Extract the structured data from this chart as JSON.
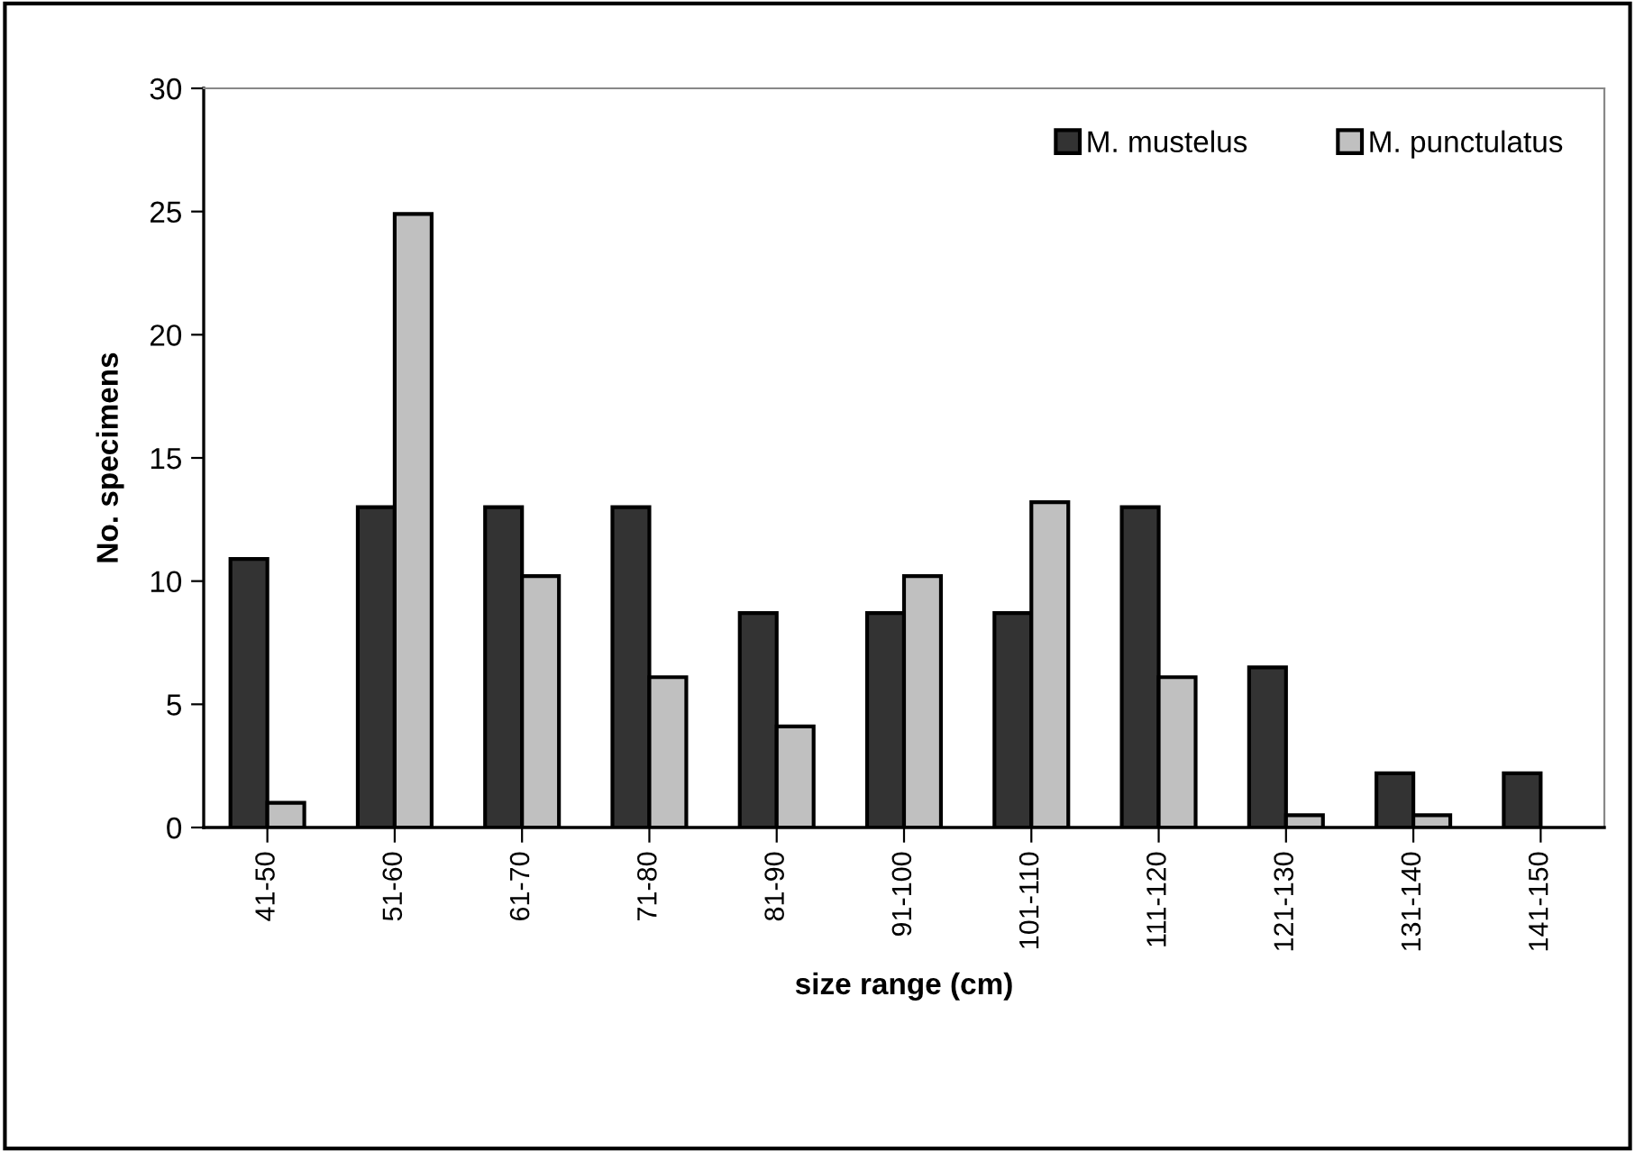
{
  "chart_data": {
    "type": "bar",
    "xlabel": "size range (cm)",
    "ylabel": "No. specimens",
    "categories": [
      "41-50",
      "51-60",
      "61-70",
      "71-80",
      "81-90",
      "91-100",
      "101-110",
      "111-120",
      "121-130",
      "131-140",
      "141-150"
    ],
    "series": [
      {
        "name": "M. mustelus",
        "color": "#333333",
        "values": [
          10.9,
          13,
          13,
          13,
          8.7,
          8.7,
          8.7,
          13,
          6.5,
          2.2,
          2.2
        ]
      },
      {
        "name": "M. punctulatus",
        "color": "#c0c0c0",
        "values": [
          1,
          24.9,
          10.2,
          6.1,
          4.1,
          10.2,
          13.2,
          6.1,
          0.5,
          0.5,
          null
        ]
      }
    ],
    "ylim": [
      0,
      30
    ],
    "yticks": [
      0,
      5,
      10,
      15,
      20,
      25,
      30
    ],
    "grid": false,
    "legend": "top right"
  }
}
